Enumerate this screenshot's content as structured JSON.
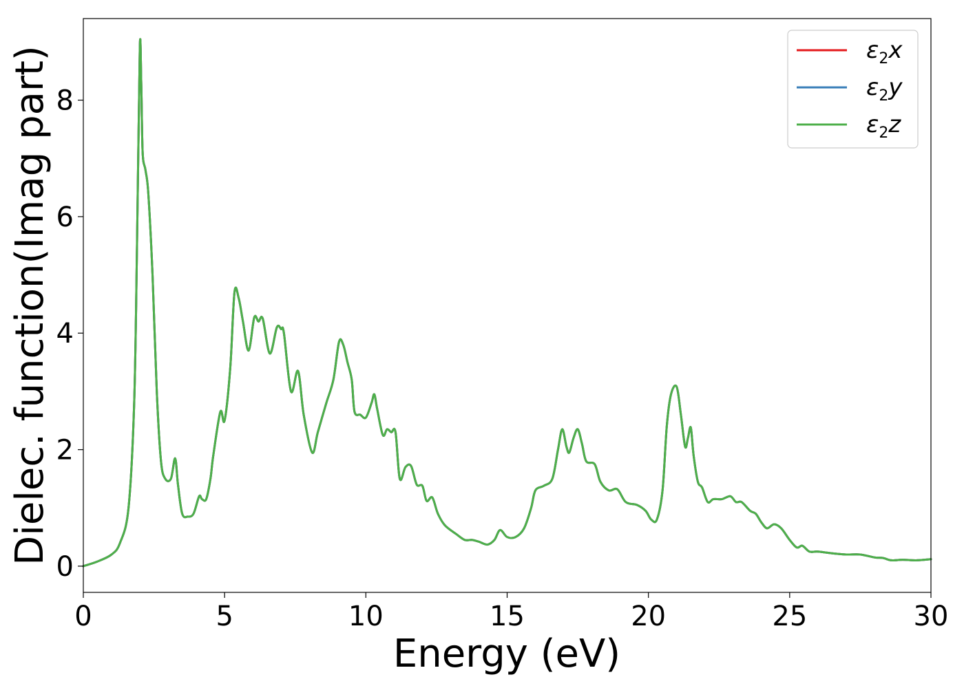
{
  "chart_data": {
    "type": "line",
    "title": "",
    "xlabel": "Energy (eV)",
    "ylabel": "Dielec. function(Imag part)",
    "xlim": [
      0,
      30
    ],
    "ylim": [
      -0.45,
      9.4
    ],
    "xticks": [
      0,
      5,
      10,
      15,
      20,
      25,
      30
    ],
    "xtick_labels": [
      "0",
      "5",
      "10",
      "15",
      "20",
      "25",
      "30"
    ],
    "yticks": [
      0,
      2,
      4,
      6,
      8
    ],
    "ytick_labels": [
      "0",
      "2",
      "4",
      "6",
      "8"
    ],
    "grid": false,
    "legend_position": "top-right",
    "x": [
      0,
      0.5,
      1.0,
      1.3,
      1.6,
      1.8,
      1.9,
      2.0,
      2.05,
      2.1,
      2.2,
      2.3,
      2.45,
      2.6,
      2.75,
      2.9,
      3.1,
      3.25,
      3.35,
      3.5,
      3.7,
      3.9,
      4.1,
      4.2,
      4.35,
      4.5,
      4.6,
      4.85,
      5.0,
      5.2,
      5.35,
      5.5,
      5.65,
      5.85,
      6.05,
      6.2,
      6.35,
      6.6,
      6.85,
      7.0,
      7.1,
      7.35,
      7.6,
      7.8,
      8.1,
      8.3,
      8.6,
      8.85,
      9.05,
      9.2,
      9.35,
      9.5,
      9.6,
      9.8,
      10.0,
      10.2,
      10.3,
      10.4,
      10.6,
      10.75,
      10.9,
      11.05,
      11.2,
      11.4,
      11.6,
      11.8,
      12.0,
      12.15,
      12.35,
      12.55,
      12.8,
      13.2,
      13.5,
      13.75,
      14.0,
      14.3,
      14.55,
      14.75,
      15.0,
      15.3,
      15.6,
      15.85,
      16.0,
      16.3,
      16.6,
      16.8,
      16.95,
      17.1,
      17.2,
      17.35,
      17.5,
      17.65,
      17.8,
      18.1,
      18.3,
      18.6,
      18.9,
      19.2,
      19.6,
      19.9,
      20.1,
      20.3,
      20.5,
      20.65,
      20.8,
      21.0,
      21.15,
      21.3,
      21.4,
      21.5,
      21.6,
      21.75,
      21.9,
      22.1,
      22.3,
      22.6,
      22.9,
      23.1,
      23.3,
      23.6,
      23.8,
      24.0,
      24.2,
      24.45,
      24.7,
      25.0,
      25.25,
      25.45,
      25.7,
      26.0,
      26.5,
      27.0,
      27.5,
      28.0,
      28.3,
      28.6,
      29.0,
      29.5,
      30.0
    ],
    "series": [
      {
        "name": "ε₂x",
        "label_main": "ε",
        "label_sub": "2",
        "label_axis": "x",
        "color": "#e41a1c",
        "y": [
          0.0,
          0.08,
          0.2,
          0.4,
          1.0,
          2.8,
          5.5,
          8.9,
          8.3,
          7.1,
          6.8,
          6.4,
          5.0,
          3.0,
          1.8,
          1.5,
          1.5,
          1.85,
          1.4,
          0.9,
          0.85,
          0.9,
          1.2,
          1.15,
          1.15,
          1.5,
          1.9,
          2.65,
          2.5,
          3.4,
          4.7,
          4.6,
          4.2,
          3.7,
          4.27,
          4.2,
          4.25,
          3.65,
          4.1,
          4.07,
          4.0,
          3.0,
          3.35,
          2.6,
          1.95,
          2.3,
          2.8,
          3.2,
          3.85,
          3.8,
          3.5,
          3.2,
          2.65,
          2.6,
          2.55,
          2.8,
          2.95,
          2.7,
          2.25,
          2.35,
          2.3,
          2.3,
          1.5,
          1.7,
          1.72,
          1.4,
          1.38,
          1.12,
          1.18,
          0.9,
          0.7,
          0.55,
          0.45,
          0.45,
          0.42,
          0.37,
          0.45,
          0.62,
          0.5,
          0.5,
          0.65,
          1.0,
          1.3,
          1.38,
          1.5,
          2.0,
          2.35,
          2.05,
          1.95,
          2.2,
          2.35,
          2.1,
          1.8,
          1.75,
          1.45,
          1.3,
          1.32,
          1.1,
          1.05,
          0.95,
          0.8,
          0.8,
          1.3,
          2.4,
          2.95,
          3.08,
          2.6,
          2.05,
          2.2,
          2.38,
          1.9,
          1.45,
          1.35,
          1.1,
          1.15,
          1.15,
          1.2,
          1.1,
          1.1,
          0.95,
          0.9,
          0.75,
          0.65,
          0.72,
          0.65,
          0.45,
          0.32,
          0.35,
          0.25,
          0.25,
          0.22,
          0.2,
          0.2,
          0.15,
          0.14,
          0.1,
          0.11,
          0.1,
          0.12
        ]
      },
      {
        "name": "ε₂y",
        "label_main": "ε",
        "label_sub": "2",
        "label_axis": "y",
        "color": "#377eb8",
        "y": [
          0.0,
          0.08,
          0.2,
          0.4,
          1.0,
          2.8,
          5.5,
          8.9,
          8.3,
          7.1,
          6.8,
          6.4,
          5.0,
          3.0,
          1.8,
          1.5,
          1.5,
          1.85,
          1.4,
          0.9,
          0.85,
          0.9,
          1.2,
          1.15,
          1.15,
          1.5,
          1.9,
          2.65,
          2.5,
          3.4,
          4.7,
          4.6,
          4.2,
          3.7,
          4.27,
          4.2,
          4.25,
          3.65,
          4.1,
          4.07,
          4.0,
          3.0,
          3.35,
          2.6,
          1.95,
          2.3,
          2.8,
          3.2,
          3.85,
          3.8,
          3.5,
          3.2,
          2.65,
          2.6,
          2.55,
          2.8,
          2.95,
          2.7,
          2.25,
          2.35,
          2.3,
          2.3,
          1.5,
          1.7,
          1.72,
          1.4,
          1.38,
          1.12,
          1.18,
          0.9,
          0.7,
          0.55,
          0.45,
          0.45,
          0.42,
          0.37,
          0.45,
          0.62,
          0.5,
          0.5,
          0.65,
          1.0,
          1.3,
          1.38,
          1.5,
          2.0,
          2.35,
          2.05,
          1.95,
          2.2,
          2.35,
          2.1,
          1.8,
          1.75,
          1.45,
          1.3,
          1.32,
          1.1,
          1.05,
          0.95,
          0.8,
          0.8,
          1.3,
          2.4,
          2.95,
          3.08,
          2.6,
          2.05,
          2.2,
          2.38,
          1.9,
          1.45,
          1.35,
          1.1,
          1.15,
          1.15,
          1.2,
          1.1,
          1.1,
          0.95,
          0.9,
          0.75,
          0.65,
          0.72,
          0.65,
          0.45,
          0.32,
          0.35,
          0.25,
          0.25,
          0.22,
          0.2,
          0.2,
          0.15,
          0.14,
          0.1,
          0.11,
          0.1,
          0.12
        ]
      },
      {
        "name": "ε₂z",
        "label_main": "ε",
        "label_sub": "2",
        "label_axis": "z",
        "color": "#4daf4a",
        "y": [
          0.0,
          0.08,
          0.2,
          0.4,
          1.0,
          2.8,
          5.5,
          8.9,
          8.3,
          7.1,
          6.8,
          6.4,
          5.0,
          3.0,
          1.8,
          1.5,
          1.5,
          1.85,
          1.4,
          0.9,
          0.85,
          0.9,
          1.2,
          1.15,
          1.15,
          1.5,
          1.9,
          2.65,
          2.5,
          3.4,
          4.7,
          4.6,
          4.2,
          3.7,
          4.27,
          4.2,
          4.25,
          3.65,
          4.1,
          4.07,
          4.0,
          3.0,
          3.35,
          2.6,
          1.95,
          2.3,
          2.8,
          3.2,
          3.85,
          3.8,
          3.5,
          3.2,
          2.65,
          2.6,
          2.55,
          2.8,
          2.95,
          2.7,
          2.25,
          2.35,
          2.3,
          2.3,
          1.5,
          1.7,
          1.72,
          1.4,
          1.38,
          1.12,
          1.18,
          0.9,
          0.7,
          0.55,
          0.45,
          0.45,
          0.42,
          0.37,
          0.45,
          0.62,
          0.5,
          0.5,
          0.65,
          1.0,
          1.3,
          1.38,
          1.5,
          2.0,
          2.35,
          2.05,
          1.95,
          2.2,
          2.35,
          2.1,
          1.8,
          1.75,
          1.45,
          1.3,
          1.32,
          1.1,
          1.05,
          0.95,
          0.8,
          0.8,
          1.3,
          2.4,
          2.95,
          3.08,
          2.6,
          2.05,
          2.2,
          2.38,
          1.9,
          1.45,
          1.35,
          1.1,
          1.15,
          1.15,
          1.2,
          1.1,
          1.1,
          0.95,
          0.9,
          0.75,
          0.65,
          0.72,
          0.65,
          0.45,
          0.32,
          0.35,
          0.25,
          0.25,
          0.22,
          0.2,
          0.2,
          0.15,
          0.14,
          0.1,
          0.11,
          0.1,
          0.12
        ]
      }
    ]
  }
}
